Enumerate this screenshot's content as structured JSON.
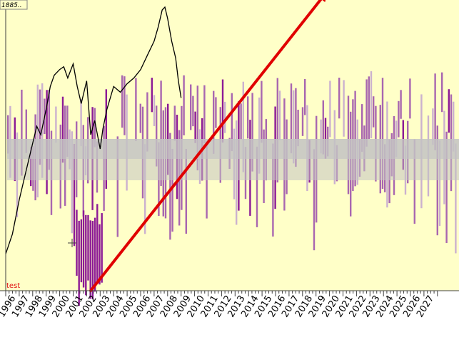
{
  "chart_data": {
    "type": "bar",
    "x_start_year": 1996,
    "x_end_year": 2028,
    "x_tick_labels": [
      "1996",
      "1997",
      "1998",
      "1999",
      "2000",
      "2001",
      "2002",
      "2003",
      "2004",
      "2005",
      "2006",
      "2007",
      "2008",
      "2009",
      "2010",
      "2011",
      "2012",
      "2013",
      "2014",
      "2015",
      "2016",
      "2017",
      "2018",
      "2019",
      "2020",
      "2021",
      "2022",
      "2023",
      "2024",
      "2025",
      "2026",
      "2027"
    ],
    "corner_label": "1885..",
    "annotation_label": "test",
    "price_series": {
      "years": [
        1996.0,
        1996.5,
        1997.0,
        1997.5,
        1998.0,
        1998.3,
        1998.6,
        1999.0,
        1999.3,
        1999.6,
        2000.0,
        2000.3,
        2000.6,
        2001.0,
        2001.3,
        2001.6,
        2002.0,
        2002.3,
        2002.6,
        2003.0,
        2003.2,
        2003.5,
        2004.0,
        2004.5,
        2005.0,
        2005.5,
        2006.0,
        2006.5,
        2007.0,
        2007.3,
        2007.6,
        2007.8,
        2008.0,
        2008.3,
        2008.6,
        2008.8,
        2009.0
      ],
      "levels": [
        0.13,
        0.2,
        0.32,
        0.42,
        0.52,
        0.58,
        0.55,
        0.64,
        0.72,
        0.76,
        0.78,
        0.79,
        0.75,
        0.8,
        0.72,
        0.66,
        0.74,
        0.55,
        0.6,
        0.5,
        0.57,
        0.64,
        0.72,
        0.7,
        0.73,
        0.75,
        0.78,
        0.83,
        0.88,
        0.93,
        0.99,
        1.0,
        0.96,
        0.88,
        0.82,
        0.74,
        0.68
      ]
    },
    "diagonal_arrow": {
      "from": [
        2002.3,
        0.0
      ],
      "to": [
        2019.9,
        1.06
      ]
    },
    "colors": {
      "background": "#ffffc8",
      "gray_band": "#c3c3c3",
      "purple_dark": "#8c1a96",
      "purple_mid": "#a866b0",
      "purple_light": "#cbb1cf",
      "arrow": "#e00000",
      "price_line": "#000000"
    }
  }
}
